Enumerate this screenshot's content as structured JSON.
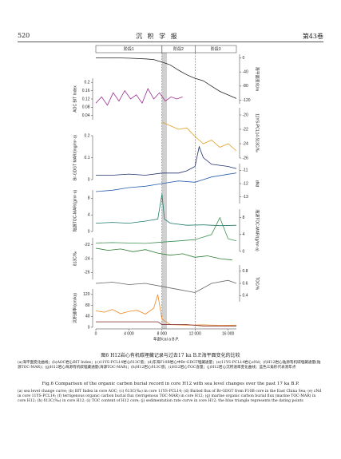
{
  "header": {
    "page": "520",
    "journal": "沉 积 学 报",
    "volume": "第43卷"
  },
  "figure": {
    "stages": [
      {
        "label": "阶段1",
        "range": [
          0,
          8000
        ]
      },
      {
        "label": "阶段2",
        "range": [
          8000,
          12000
        ]
      },
      {
        "label": "阶段3",
        "range": [
          12000,
          17000
        ]
      }
    ],
    "shade": [
      8000,
      8600
    ],
    "xlabel": "年龄/cal a B.P.",
    "xlim": [
      0,
      17000
    ],
    "xticks": [
      0,
      {
        "value": 4000,
        "label": "4 000"
      },
      {
        "value": 8000,
        "label": "8 000"
      },
      {
        "value": 12000,
        "label": "12 000"
      },
      {
        "value": 16000,
        "label": "16 000"
      }
    ]
  },
  "chart_data": [
    {
      "type": "line",
      "ylabel": "海平面变化/m",
      "side": "right",
      "ylim": [
        -130,
        10
      ],
      "yticks": [
        0,
        -40,
        -80,
        -120
      ],
      "x": [
        0,
        1000,
        2000,
        4000,
        6000,
        7000,
        8000,
        9000,
        10000,
        11000,
        12000,
        13000,
        14000,
        15000,
        16000,
        17000
      ],
      "series": [
        {
          "color": "#222222",
          "values": [
            0,
            0,
            0,
            -1,
            -3,
            -5,
            -12,
            -20,
            -35,
            -48,
            -58,
            -65,
            -80,
            -95,
            -105,
            -115
          ]
        }
      ]
    },
    {
      "type": "line",
      "ylabel": "AOC BIT Index",
      "side": "left",
      "ylim": [
        0.02,
        0.22
      ],
      "yticks": [
        0.04,
        0.08,
        0.12,
        0.16,
        0.2
      ],
      "x": [
        0,
        700,
        1400,
        2100,
        2800,
        3500,
        4200,
        4900,
        5600,
        6300,
        7000,
        7700,
        8400,
        9100,
        9800,
        10500
      ],
      "series": [
        {
          "color": "#9b2b8f",
          "values": [
            0.1,
            0.13,
            0.09,
            0.15,
            0.11,
            0.16,
            0.12,
            0.14,
            0.1,
            0.17,
            0.12,
            0.15,
            0.11,
            0.13,
            0.12,
            0.13
          ]
        }
      ]
    },
    {
      "type": "line",
      "ylabel": "11YS-PCL14 δ13C/‰",
      "side": "right",
      "ylim": [
        -26,
        -19
      ],
      "yticks": [
        -20,
        -22,
        -24,
        -26
      ],
      "x": [
        8000,
        9000,
        10000,
        11000,
        12000,
        13000,
        14000,
        15000,
        16000,
        17000
      ],
      "series": [
        {
          "color": "#e0a020",
          "values": [
            -21,
            -21.5,
            -22,
            -21.8,
            -23,
            -24,
            -23.5,
            -24.5,
            -24,
            -25
          ]
        }
      ]
    },
    {
      "type": "line",
      "ylabel": "Br-GDGT MAR/(mg/m²·a)",
      "side": "left",
      "ylim": [
        0,
        0.2
      ],
      "yticks": [
        0,
        0.1,
        0.2
      ],
      "x": [
        0,
        2000,
        4000,
        6000,
        8000,
        10000,
        11000,
        12000,
        12500,
        13000,
        14000,
        16000,
        17000
      ],
      "series": [
        {
          "color": "#23306e",
          "values": [
            0.02,
            0.02,
            0.025,
            0.02,
            0.03,
            0.03,
            0.04,
            0.06,
            0.15,
            0.1,
            0.07,
            0.06,
            0.05
          ]
        }
      ]
    },
    {
      "type": "line",
      "ylabel": "εNd",
      "side": "right",
      "ylim": [
        -13.5,
        -10.5
      ],
      "yticks": [
        -11,
        -12,
        -13
      ],
      "x": [
        0,
        2000,
        4000,
        6000,
        8000,
        10000,
        12000,
        14000,
        16000,
        17000
      ],
      "series": [
        {
          "color": "#2b5fb0",
          "values": [
            -12.6,
            -12.5,
            -12.3,
            -12.2,
            -12,
            -11.8,
            -11.9,
            -11.5,
            -11.3,
            -11.2
          ]
        }
      ]
    },
    {
      "type": "line",
      "ylabel": "陆源TOC-MAR/(g/m²·a)",
      "side": "left",
      "ylim": [
        0,
        10
      ],
      "yticks": [
        0,
        4,
        8
      ],
      "x": [
        0,
        2000,
        4000,
        6000,
        7500,
        8000,
        8300,
        9000,
        11000,
        13000,
        15000,
        17000
      ],
      "series": [
        {
          "color": "#1f7a6a",
          "values": [
            2,
            2.2,
            2,
            2.5,
            3,
            9,
            3,
            2,
            1.5,
            1.6,
            1.4,
            1.5
          ]
        }
      ]
    },
    {
      "type": "line",
      "ylabel": "海源TOC-MAR/(g/m²·a)",
      "side": "right",
      "ylim": [
        0,
        10
      ],
      "yticks": [
        0,
        4,
        8
      ],
      "x": [
        0,
        2000,
        4000,
        6000,
        8000,
        10000,
        12000,
        14000,
        15000,
        16000,
        17000
      ],
      "series": [
        {
          "color": "#3a8f50",
          "values": [
            2,
            2.1,
            2,
            1.9,
            2.2,
            2.5,
            2.8,
            4,
            8,
            3,
            2.5
          ]
        }
      ]
    },
    {
      "type": "line",
      "ylabel": "δ13C/‰",
      "side": "left",
      "ylim": [
        -27,
        -21
      ],
      "yticks": [
        -22,
        -24,
        -26
      ],
      "x": [
        0,
        1500,
        3000,
        4500,
        6000,
        7500,
        9000,
        10500,
        12000,
        13500,
        15000,
        16500
      ],
      "series": [
        {
          "color": "#2e7d32",
          "values": [
            -22.5,
            -22.8,
            -22.6,
            -23,
            -22.7,
            -23.2,
            -23.5,
            -23.3,
            -23.8,
            -23.6,
            -24,
            -24.2
          ]
        }
      ]
    },
    {
      "type": "line",
      "ylabel": "TOC/%",
      "side": "right",
      "ylim": [
        0.3,
        0.9
      ],
      "yticks": [
        0.4,
        0.6,
        0.8
      ],
      "x": [
        0,
        2000,
        4000,
        6000,
        8000,
        10000,
        12000,
        14000,
        16000,
        17000
      ],
      "series": [
        {
          "color": "#666666",
          "values": [
            0.6,
            0.62,
            0.58,
            0.6,
            0.55,
            0.5,
            0.45,
            0.6,
            0.65,
            0.6
          ]
        }
      ]
    },
    {
      "type": "line",
      "ylabel": "沉积速率/(cm/ka)",
      "side": "left",
      "ylim": [
        0,
        140
      ],
      "yticks": [
        0,
        40,
        80,
        120
      ],
      "x": [
        0,
        1000,
        2000,
        3000,
        4000,
        5000,
        6000,
        7000,
        7500,
        8000,
        9000,
        11000,
        13000,
        15000,
        17000
      ],
      "series": [
        {
          "color": "#f08a24",
          "values": [
            60,
            55,
            65,
            50,
            58,
            62,
            48,
            70,
            120,
            30,
            10,
            8,
            9,
            7,
            8
          ]
        },
        {
          "color": "#7a1f1f",
          "values": [
            20,
            20,
            20,
            20,
            20,
            20,
            20,
            20,
            20,
            10,
            10,
            10,
            5,
            5,
            5
          ]
        }
      ]
    }
  ],
  "caption": {
    "cn_title": "图6  H12岩心有机碳埋藏记录与过去17 ka B.P.海平面变化的比较",
    "cn_note": "(a)海平面变化曲线；(b)AOC岩心BIT Index；(c)11YS-PCL14岩心δ13C值；(d)东海F10B岩心中Br-GDGT埋藏通量；(e)11YS-PCL14岩心εNd；(f)H12岩心陆源有机碳埋藏通量(陆源TOC-MAR)；(g)H12岩心海源有机碳埋藏通量(海源TOC-MAR)；(h)H12岩心δ13C值；(i)H12岩心TOC含量；(j)H12岩心沉积速率变化曲线；蓝色三角形代表测年点",
    "en_title": "Fig.6  Comparison of the organic carbon burial record in core H12 with sea level changes over the past 17 ka B.P.",
    "en_note": "(a) sea level change curve; (b) BIT Index in core AOC; (c) δ13C(‰) in core 11YS-PCL14; (d) Buried flux of Br-GDGT from F10B core in the East China Sea; (e) εNd in core 11YS-PCL14; (f) terrigenous organic carbon burial flux (terrigenous TOC-MAR) in core H12; (g) marine organic carbon burial flux (marine TOC-MAR) in core H12; (h) δ13C(‰) in core H12; (i) TOC content of H12 core; (j) sedimentation rate curve in core H12; the blue triangle represents the dating points"
  }
}
